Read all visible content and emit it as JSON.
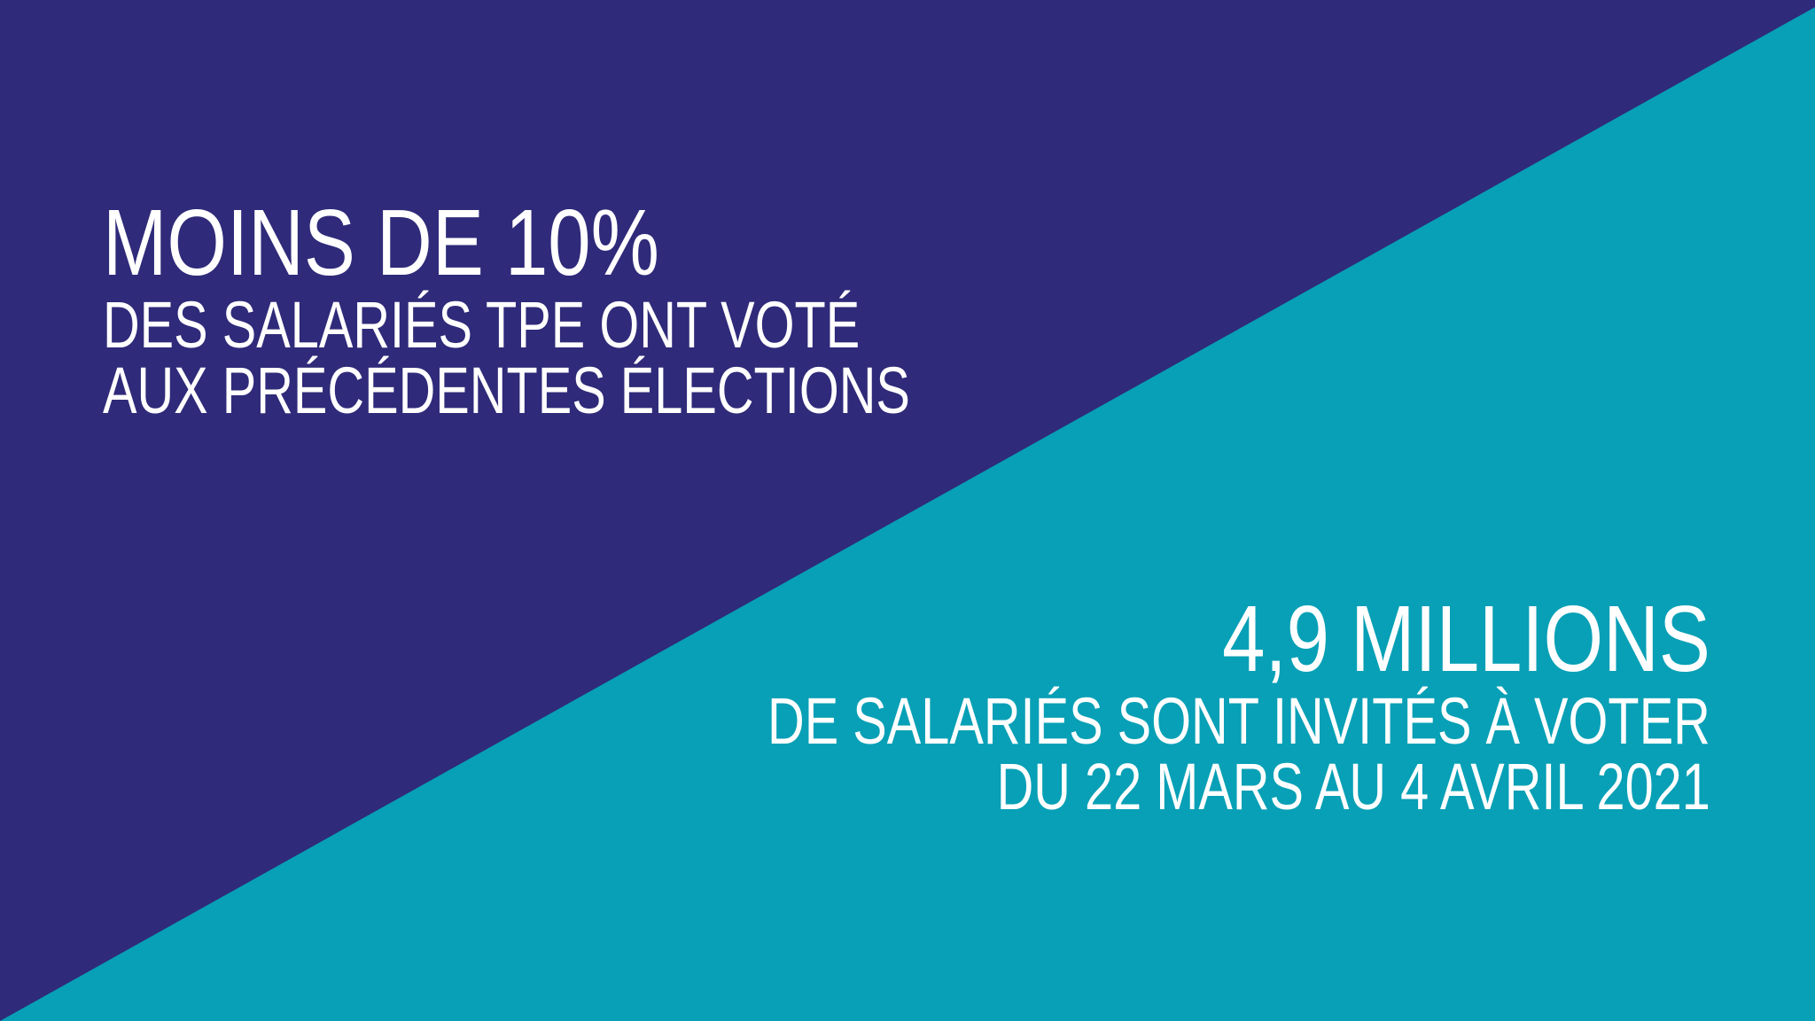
{
  "colors": {
    "upper_left": "#2f2a79",
    "lower_right": "#07a0b6",
    "text": "#ffffff"
  },
  "left_block": {
    "headline": "MOINS DE 10%",
    "line1": "DES SALARIÉS TPE ONT VOTÉ",
    "line2": "AUX PRÉCÉDENTES ÉLECTIONS"
  },
  "right_block": {
    "headline": "4,9 MILLIONS",
    "line1": "DE SALARIÉS SONT INVITÉS À VOTER",
    "line2": "DU 22 MARS AU 4 AVRIL 2021"
  }
}
